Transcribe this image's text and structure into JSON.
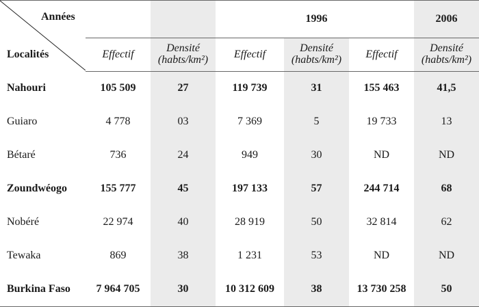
{
  "header": {
    "corner_top": "Années",
    "corner_bottom": "Localités",
    "year_2": "1996",
    "year_3": "2006",
    "col_effectif": "Effectif",
    "col_densite_line1": "Densité",
    "col_densite_line2": "(habts/km²)"
  },
  "rows": [
    {
      "name": "Nahouri",
      "eff1": "105 509",
      "den1": "27",
      "eff2": "119 739",
      "den2": "31",
      "eff3": "155 463",
      "den3": "41,5"
    },
    {
      "name": "Guiaro",
      "eff1": "4 778",
      "den1": "03",
      "eff2": "7 369",
      "den2": "5",
      "eff3": "19 733",
      "den3": "13"
    },
    {
      "name": "Bétaré",
      "eff1": "736",
      "den1": "24",
      "eff2": "949",
      "den2": "30",
      "eff3": "ND",
      "den3": "ND"
    },
    {
      "name": "Zoundwéogo",
      "eff1": "155 777",
      "den1": "45",
      "eff2": "197 133",
      "den2": "57",
      "eff3": "244 714",
      "den3": "68"
    },
    {
      "name": "Nobéré",
      "eff1": "22 974",
      "den1": "40",
      "eff2": "28 919",
      "den2": "50",
      "eff3": "32 814",
      "den3": "62"
    },
    {
      "name": "Tewaka",
      "eff1": "869",
      "den1": "38",
      "eff2": "1 231",
      "den2": "53",
      "eff3": "ND",
      "den3": "ND"
    },
    {
      "name": "Burkina Faso",
      "eff1": "7 964 705",
      "den1": "30",
      "eff2": "10 312 609",
      "den2": "38",
      "eff3": "13 730 258",
      "den3": "50"
    }
  ]
}
